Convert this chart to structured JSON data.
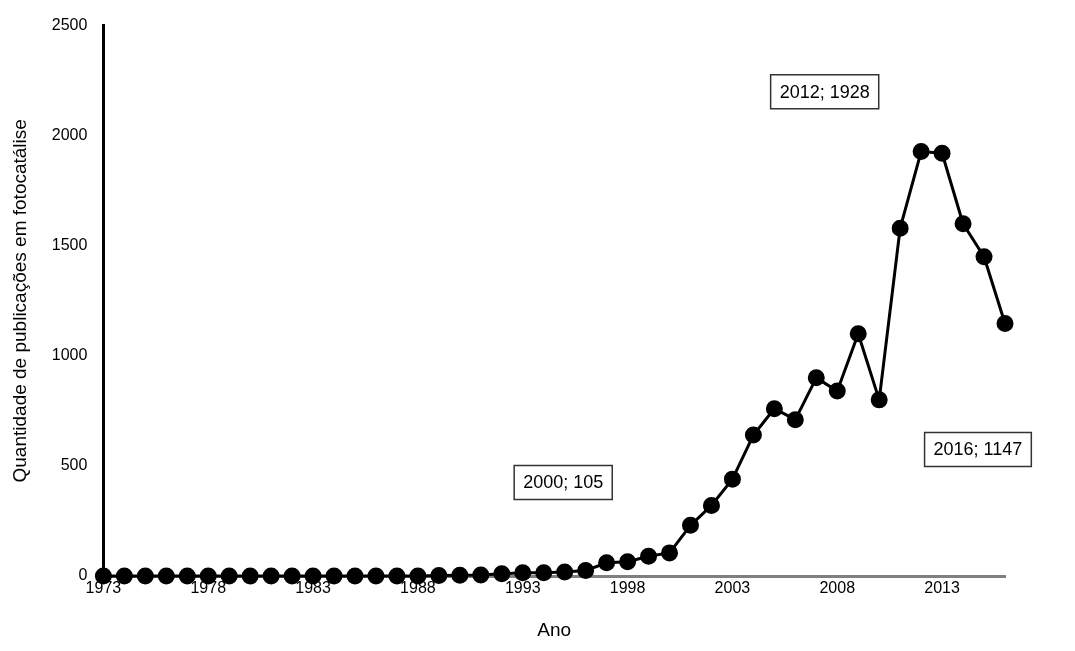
{
  "chart_data": {
    "type": "line",
    "xlabel": "Ano",
    "ylabel": "Quantidade de publicações em fotocatálise",
    "x": [
      1973,
      1974,
      1975,
      1976,
      1977,
      1978,
      1979,
      1980,
      1981,
      1982,
      1983,
      1984,
      1985,
      1986,
      1987,
      1988,
      1989,
      1990,
      1991,
      1992,
      1993,
      1994,
      1995,
      1996,
      1997,
      1998,
      1999,
      2000,
      2001,
      2002,
      2003,
      2004,
      2005,
      2006,
      2007,
      2008,
      2009,
      2010,
      2011,
      2012,
      2013,
      2014,
      2015,
      2016
    ],
    "series": [
      {
        "color": "#000000",
        "values": [
          0,
          0,
          0,
          0,
          0,
          0,
          0,
          0,
          0,
          0,
          0,
          0,
          0,
          0,
          0,
          0,
          2,
          3,
          5,
          10,
          15,
          15,
          18,
          25,
          60,
          65,
          90,
          105,
          230,
          320,
          440,
          640,
          760,
          710,
          900,
          840,
          1100,
          800,
          1580,
          1928,
          1920,
          1600,
          1450,
          1147
        ]
      }
    ],
    "xlim": [
      1973,
      2016
    ],
    "xticks": [
      1973,
      1978,
      1983,
      1988,
      1993,
      1998,
      2003,
      2008,
      2013
    ],
    "ylim": [
      0,
      2500
    ],
    "yticks": [
      0,
      500,
      1000,
      1500,
      2000,
      2500
    ],
    "grid": false,
    "legend": false,
    "marker": "circle",
    "line_style": "solid",
    "annotations": [
      "2000; 105",
      "2012; 1928",
      "2016; 1147"
    ]
  }
}
